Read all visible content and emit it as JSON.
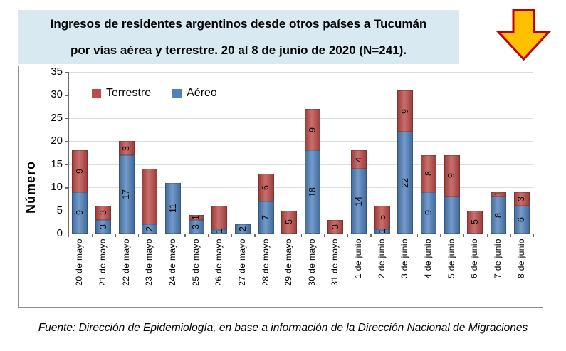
{
  "header": {
    "title_line1": "Ingresos de residentes argentinos desde otros países a Tucumán",
    "title_line2": "por vías aérea y terrestre. 20 al 8 de junio de 2020 (N=241).",
    "background": "#D9E9F1"
  },
  "arrow": {
    "name": "down-arrow",
    "fill": "#FFC000",
    "stroke": "#C00000"
  },
  "footer": {
    "source": "Fuente: Dirección de Epidemiología, en base a información de la Dirección Nacional de Migraciones"
  },
  "chart_data": {
    "type": "bar",
    "stacked": true,
    "n": 241,
    "ylabel": "Número",
    "ylim": [
      0,
      35
    ],
    "yticks": [
      0,
      5,
      10,
      15,
      20,
      25,
      30,
      35
    ],
    "grid": true,
    "legend_position": "top-left-inside",
    "legend": [
      {
        "label": "Terrestre",
        "color": "#BE4B48"
      },
      {
        "label": "Aéreo",
        "color": "#4F81BD"
      }
    ],
    "categories": [
      "20 de mayo",
      "21 de mayo",
      "22 de mayo",
      "23 de mayo",
      "24 de mayo",
      "25 de mayo",
      "26 de mayo",
      "27 de mayo",
      "28 de mayo",
      "29 de mayo",
      "30 de mayo",
      "31 de mayo",
      "1 de junio",
      "2 de junio",
      "3 de junio",
      "4 de junio",
      "5 de junio",
      "6 de junio",
      "7 de junio",
      "8 de junio"
    ],
    "series": [
      {
        "name": "Aéreo",
        "color": "#4F81BD",
        "values": [
          9,
          3,
          17,
          2,
          11,
          3,
          1,
          2,
          7,
          0,
          18,
          0,
          14,
          1,
          22,
          9,
          8,
          0,
          8,
          6
        ],
        "labels": [
          "9",
          "3",
          "17",
          "2",
          "11",
          "3",
          "1",
          "2",
          "7",
          "",
          "18",
          "",
          "14",
          "1",
          "22",
          "9",
          "",
          "",
          "8",
          "6"
        ]
      },
      {
        "name": "Terrestre",
        "color": "#BE4B48",
        "values": [
          9,
          3,
          3,
          12,
          0,
          1,
          5,
          0,
          6,
          5,
          9,
          3,
          4,
          5,
          9,
          8,
          9,
          5,
          1,
          3
        ],
        "labels": [
          "9",
          "3",
          "3",
          "",
          "",
          "1",
          "",
          "",
          "6",
          "5",
          "9",
          "3",
          "4",
          "5",
          "9",
          "8",
          "9",
          "5",
          "1",
          "3"
        ]
      }
    ],
    "totals": [
      18,
      6,
      20,
      14,
      11,
      4,
      6,
      2,
      13,
      5,
      27,
      3,
      18,
      6,
      31,
      17,
      17,
      5,
      9,
      9
    ]
  }
}
